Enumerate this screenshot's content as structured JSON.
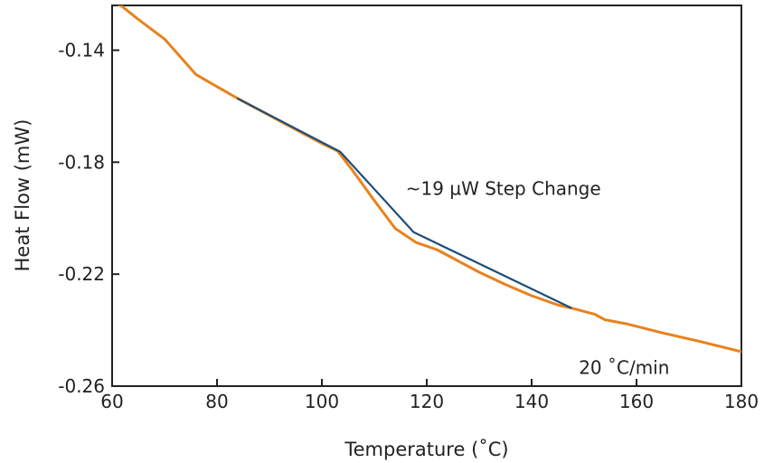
{
  "chart_data": {
    "type": "line",
    "title": "",
    "xlabel": "Temperature (˚C)",
    "ylabel": "Heat Flow (mW)",
    "xlim": [
      60,
      180
    ],
    "ylim": [
      -0.26,
      -0.124
    ],
    "x_ticks": [
      60,
      80,
      100,
      120,
      140,
      160,
      180
    ],
    "y_ticks": [
      -0.26,
      -0.22,
      -0.18,
      -0.14
    ],
    "x_tick_labels": [
      "60",
      "80",
      "100",
      "120",
      "140",
      "160",
      "180"
    ],
    "y_tick_labels": [
      "-0.26",
      "-0.22",
      "-0.18",
      "-0.14"
    ],
    "grid": false,
    "legend": "none",
    "series": [
      {
        "color": "#e8821e",
        "points": [
          [
            60,
            -0.1225
          ],
          [
            62,
            -0.1245
          ],
          [
            65,
            -0.129
          ],
          [
            70,
            -0.136
          ],
          [
            76,
            -0.1487
          ],
          [
            80,
            -0.153
          ],
          [
            84,
            -0.1573
          ],
          [
            90,
            -0.1633
          ],
          [
            95,
            -0.1683
          ],
          [
            100,
            -0.1733
          ],
          [
            103,
            -0.176
          ],
          [
            106,
            -0.1833
          ],
          [
            110,
            -0.1937
          ],
          [
            114,
            -0.2037
          ],
          [
            118,
            -0.2087
          ],
          [
            122,
            -0.2113
          ],
          [
            126,
            -0.2153
          ],
          [
            130,
            -0.2193
          ],
          [
            135,
            -0.2237
          ],
          [
            140,
            -0.2277
          ],
          [
            145,
            -0.231
          ],
          [
            148,
            -0.2323
          ],
          [
            152,
            -0.2343
          ],
          [
            154,
            -0.2363
          ],
          [
            158,
            -0.2377
          ],
          [
            165,
            -0.241
          ],
          [
            172,
            -0.244
          ],
          [
            180,
            -0.2477
          ]
        ]
      },
      {
        "color": "#1f4e79",
        "points": [
          [
            84,
            -0.1573
          ],
          [
            103.5,
            -0.1763
          ],
          [
            117.5,
            -0.205
          ],
          [
            147.5,
            -0.232
          ]
        ]
      }
    ],
    "annotations": [
      {
        "text": "~19 µW Step Change",
        "x": 116,
        "y": -0.1917
      },
      {
        "text": "20 ˚C/min",
        "x": 149,
        "y": -0.2557
      }
    ]
  }
}
